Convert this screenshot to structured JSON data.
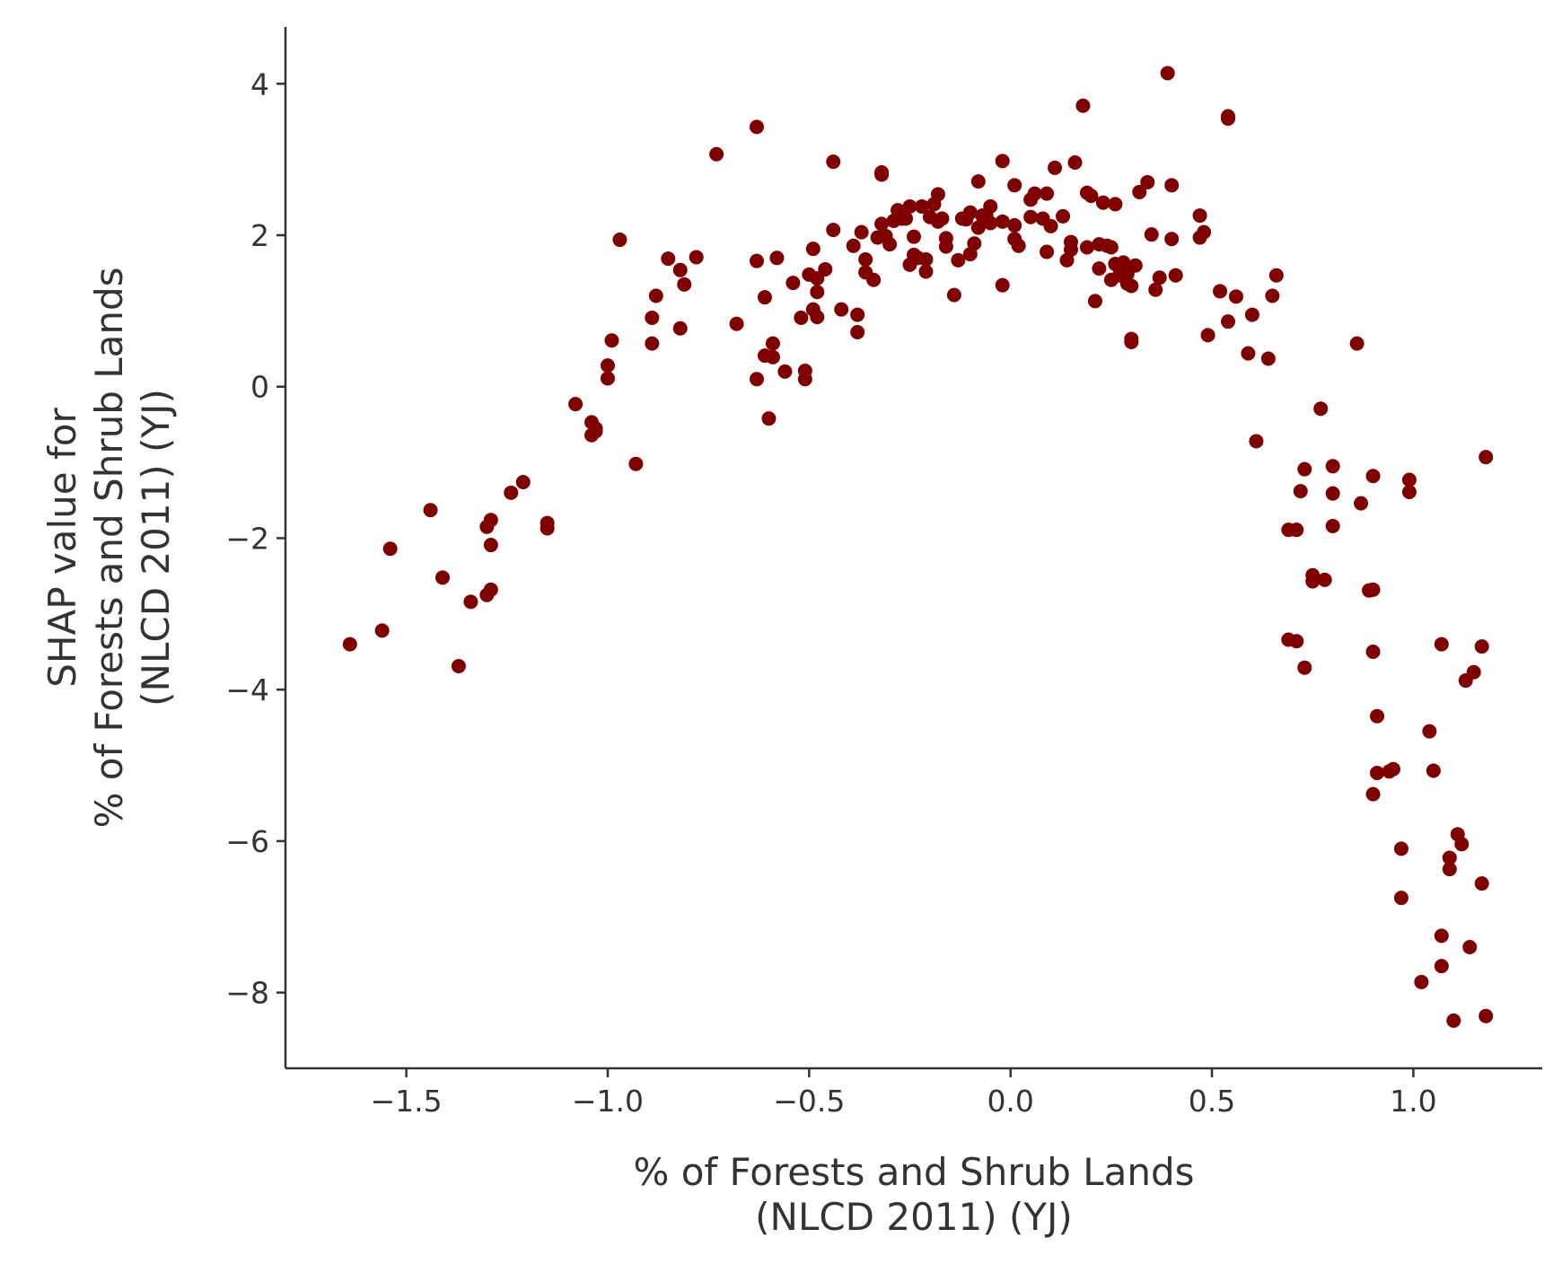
{
  "chart_data": {
    "type": "scatter",
    "title": "",
    "xlabel": [
      "% of Forests and Shrub Lands",
      "(NLCD 2011) (YJ)"
    ],
    "ylabel": [
      "SHAP value for",
      "% of Forests and Shrub Lands",
      "(NLCD 2011) (YJ)"
    ],
    "xlim": [
      -1.8,
      1.32
    ],
    "ylim": [
      -9.0,
      4.75
    ],
    "xticks": [
      -1.5,
      -1.0,
      -0.5,
      0.0,
      0.5,
      1.0
    ],
    "xtick_labels": [
      "−1.5",
      "−1.0",
      "−0.5",
      "0.0",
      "0.5",
      "1.0"
    ],
    "yticks": [
      4,
      2,
      0,
      -2,
      -4,
      -6,
      -8
    ],
    "ytick_labels": [
      "4",
      "2",
      "0",
      "−2",
      "−4",
      "−6",
      "−8"
    ],
    "grid": false,
    "marker_color": "#800000",
    "points": [
      [
        -1.64,
        -3.4
      ],
      [
        -1.56,
        -3.22
      ],
      [
        -1.54,
        -2.14
      ],
      [
        -1.44,
        -1.63
      ],
      [
        -1.41,
        -2.52
      ],
      [
        -1.37,
        -3.69
      ],
      [
        -1.34,
        -2.84
      ],
      [
        -1.3,
        -2.75
      ],
      [
        -1.3,
        -1.85
      ],
      [
        -1.29,
        -2.68
      ],
      [
        -1.29,
        -2.09
      ],
      [
        -1.29,
        -1.76
      ],
      [
        -1.24,
        -1.4
      ],
      [
        -1.21,
        -1.26
      ],
      [
        -1.15,
        -1.87
      ],
      [
        -1.15,
        -1.8
      ],
      [
        -1.08,
        -0.23
      ],
      [
        -1.04,
        -0.47
      ],
      [
        -1.04,
        -0.64
      ],
      [
        -1.03,
        -0.55
      ],
      [
        -1.03,
        -0.59
      ],
      [
        -1.0,
        0.11
      ],
      [
        -1.0,
        0.28
      ],
      [
        -0.99,
        0.61
      ],
      [
        -0.97,
        1.94
      ],
      [
        -0.93,
        -1.02
      ],
      [
        -0.89,
        0.91
      ],
      [
        -0.89,
        0.57
      ],
      [
        -0.88,
        1.2
      ],
      [
        -0.85,
        1.69
      ],
      [
        -0.82,
        1.54
      ],
      [
        -0.82,
        0.77
      ],
      [
        -0.81,
        1.35
      ],
      [
        -0.78,
        1.71
      ],
      [
        -0.73,
        3.07
      ],
      [
        -0.68,
        0.83
      ],
      [
        -0.63,
        3.43
      ],
      [
        -0.63,
        1.66
      ],
      [
        -0.63,
        0.1
      ],
      [
        -0.61,
        1.18
      ],
      [
        -0.61,
        0.41
      ],
      [
        -0.6,
        -0.42
      ],
      [
        -0.59,
        0.39
      ],
      [
        -0.59,
        0.57
      ],
      [
        -0.58,
        1.7
      ],
      [
        -0.56,
        0.2
      ],
      [
        -0.54,
        1.37
      ],
      [
        -0.52,
        0.91
      ],
      [
        -0.51,
        0.21
      ],
      [
        -0.51,
        0.1
      ],
      [
        -0.5,
        1.48
      ],
      [
        -0.49,
        1.02
      ],
      [
        -0.49,
        1.82
      ],
      [
        -0.48,
        0.92
      ],
      [
        -0.48,
        1.25
      ],
      [
        -0.48,
        1.43
      ],
      [
        -0.46,
        1.55
      ],
      [
        -0.44,
        2.97
      ],
      [
        -0.44,
        2.07
      ],
      [
        -0.42,
        1.02
      ],
      [
        -0.39,
        1.86
      ],
      [
        -0.38,
        0.95
      ],
      [
        -0.38,
        0.72
      ],
      [
        -0.37,
        2.04
      ],
      [
        -0.36,
        1.68
      ],
      [
        -0.36,
        1.51
      ],
      [
        -0.34,
        1.41
      ],
      [
        -0.33,
        1.97
      ],
      [
        -0.32,
        2.15
      ],
      [
        -0.32,
        2.8
      ],
      [
        -0.32,
        2.83
      ],
      [
        -0.31,
        1.99
      ],
      [
        -0.3,
        1.88
      ],
      [
        -0.29,
        2.19
      ],
      [
        -0.28,
        2.33
      ],
      [
        -0.27,
        2.22
      ],
      [
        -0.26,
        2.22
      ],
      [
        -0.25,
        2.38
      ],
      [
        -0.25,
        1.61
      ],
      [
        -0.24,
        1.74
      ],
      [
        -0.24,
        1.98
      ],
      [
        -0.23,
        1.7
      ],
      [
        -0.22,
        2.38
      ],
      [
        -0.21,
        1.68
      ],
      [
        -0.21,
        1.52
      ],
      [
        -0.2,
        2.24
      ],
      [
        -0.19,
        2.41
      ],
      [
        -0.18,
        2.18
      ],
      [
        -0.18,
        2.54
      ],
      [
        -0.17,
        2.22
      ],
      [
        -0.16,
        1.85
      ],
      [
        -0.16,
        1.96
      ],
      [
        -0.14,
        1.21
      ],
      [
        -0.13,
        1.67
      ],
      [
        -0.12,
        2.22
      ],
      [
        -0.11,
        2.21
      ],
      [
        -0.1,
        1.75
      ],
      [
        -0.1,
        2.3
      ],
      [
        -0.09,
        1.89
      ],
      [
        -0.08,
        2.1
      ],
      [
        -0.08,
        2.71
      ],
      [
        -0.07,
        2.26
      ],
      [
        -0.06,
        2.25
      ],
      [
        -0.05,
        2.16
      ],
      [
        -0.05,
        2.38
      ],
      [
        -0.02,
        2.18
      ],
      [
        -0.02,
        1.34
      ],
      [
        -0.02,
        2.98
      ],
      [
        0.01,
        2.13
      ],
      [
        0.01,
        2.66
      ],
      [
        0.01,
        1.95
      ],
      [
        0.02,
        1.86
      ],
      [
        0.05,
        2.24
      ],
      [
        0.05,
        2.47
      ],
      [
        0.06,
        2.55
      ],
      [
        0.08,
        2.22
      ],
      [
        0.09,
        2.55
      ],
      [
        0.09,
        1.78
      ],
      [
        0.1,
        2.12
      ],
      [
        0.11,
        2.89
      ],
      [
        0.13,
        2.25
      ],
      [
        0.14,
        1.67
      ],
      [
        0.15,
        1.81
      ],
      [
        0.15,
        1.91
      ],
      [
        0.16,
        2.96
      ],
      [
        0.18,
        3.71
      ],
      [
        0.19,
        2.56
      ],
      [
        0.19,
        1.84
      ],
      [
        0.2,
        2.52
      ],
      [
        0.21,
        1.13
      ],
      [
        0.22,
        1.56
      ],
      [
        0.22,
        1.88
      ],
      [
        0.23,
        2.43
      ],
      [
        0.24,
        1.86
      ],
      [
        0.25,
        1.41
      ],
      [
        0.25,
        1.84
      ],
      [
        0.26,
        2.41
      ],
      [
        0.26,
        1.62
      ],
      [
        0.27,
        1.47
      ],
      [
        0.28,
        1.56
      ],
      [
        0.28,
        1.64
      ],
      [
        0.29,
        1.49
      ],
      [
        0.29,
        1.36
      ],
      [
        0.3,
        1.33
      ],
      [
        0.3,
        0.63
      ],
      [
        0.3,
        0.59
      ],
      [
        0.31,
        1.6
      ],
      [
        0.32,
        2.57
      ],
      [
        0.34,
        2.7
      ],
      [
        0.35,
        2.01
      ],
      [
        0.36,
        1.28
      ],
      [
        0.37,
        1.44
      ],
      [
        0.39,
        4.14
      ],
      [
        0.4,
        2.66
      ],
      [
        0.4,
        1.95
      ],
      [
        0.41,
        1.47
      ],
      [
        0.47,
        1.97
      ],
      [
        0.47,
        2.26
      ],
      [
        0.48,
        2.04
      ],
      [
        0.49,
        0.68
      ],
      [
        0.52,
        1.26
      ],
      [
        0.54,
        0.86
      ],
      [
        0.54,
        3.57
      ],
      [
        0.54,
        3.54
      ],
      [
        0.56,
        1.19
      ],
      [
        0.59,
        0.44
      ],
      [
        0.6,
        0.95
      ],
      [
        0.61,
        -0.72
      ],
      [
        0.64,
        0.37
      ],
      [
        0.65,
        1.2
      ],
      [
        0.66,
        1.47
      ],
      [
        0.69,
        -1.89
      ],
      [
        0.69,
        -3.34
      ],
      [
        0.71,
        -1.89
      ],
      [
        0.71,
        -3.36
      ],
      [
        0.72,
        -1.38
      ],
      [
        0.73,
        -1.09
      ],
      [
        0.73,
        -3.71
      ],
      [
        0.75,
        -2.49
      ],
      [
        0.75,
        -2.57
      ],
      [
        0.77,
        -0.29
      ],
      [
        0.78,
        -2.55
      ],
      [
        0.8,
        -1.41
      ],
      [
        0.8,
        -1.05
      ],
      [
        0.8,
        -1.84
      ],
      [
        0.86,
        0.57
      ],
      [
        0.87,
        -1.54
      ],
      [
        0.89,
        -2.69
      ],
      [
        0.9,
        -2.68
      ],
      [
        0.9,
        -1.18
      ],
      [
        0.9,
        -3.5
      ],
      [
        0.9,
        -5.38
      ],
      [
        0.91,
        -4.35
      ],
      [
        0.91,
        -5.1
      ],
      [
        0.94,
        -5.08
      ],
      [
        0.95,
        -5.05
      ],
      [
        0.97,
        -6.1
      ],
      [
        0.97,
        -6.75
      ],
      [
        0.99,
        -1.23
      ],
      [
        0.99,
        -1.39
      ],
      [
        1.02,
        -7.86
      ],
      [
        1.04,
        -4.55
      ],
      [
        1.05,
        -5.07
      ],
      [
        1.07,
        -3.4
      ],
      [
        1.07,
        -7.25
      ],
      [
        1.07,
        -7.65
      ],
      [
        1.09,
        -6.22
      ],
      [
        1.09,
        -6.37
      ],
      [
        1.1,
        -8.37
      ],
      [
        1.11,
        -5.91
      ],
      [
        1.12,
        -6.04
      ],
      [
        1.13,
        -3.88
      ],
      [
        1.14,
        -7.4
      ],
      [
        1.15,
        -3.77
      ],
      [
        1.17,
        -6.56
      ],
      [
        1.17,
        -3.43
      ],
      [
        1.18,
        -0.93
      ],
      [
        1.18,
        -8.31
      ]
    ]
  }
}
